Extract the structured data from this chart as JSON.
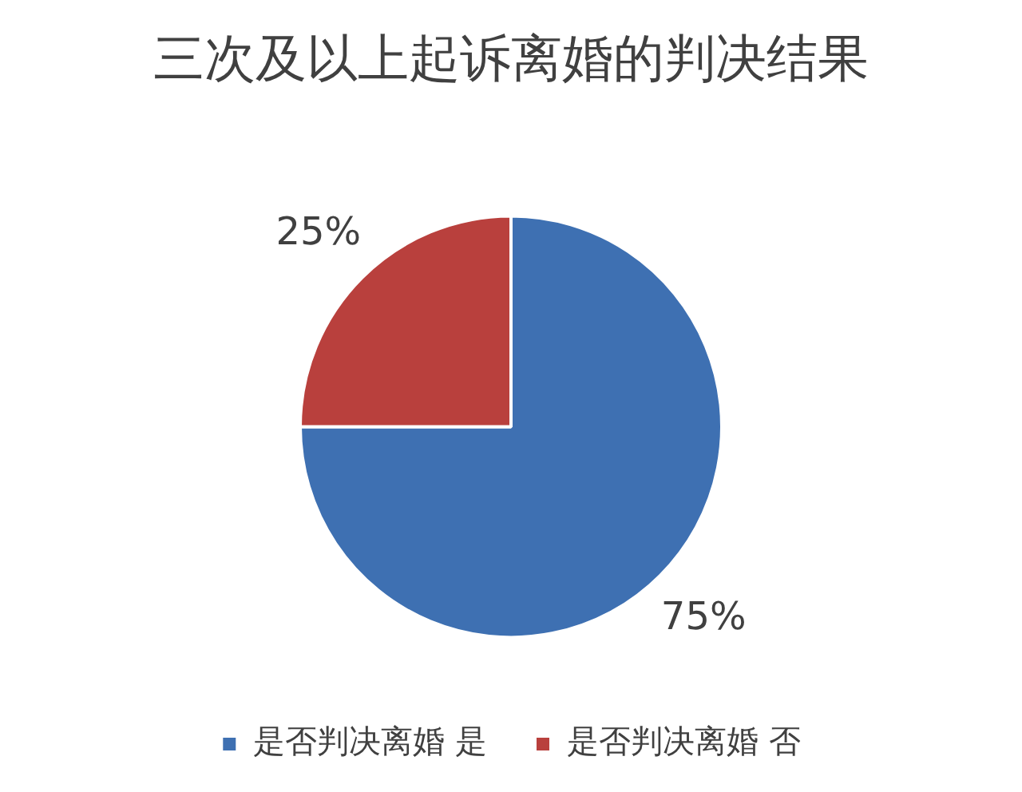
{
  "chart_data": {
    "type": "pie",
    "title": "三次及以上起诉离婚的判决结果",
    "categories": [
      "是否判决离婚 是",
      "是否判决离婚 否"
    ],
    "values": [
      75,
      25
    ],
    "colors": [
      "#3e70b2",
      "#b9403d"
    ],
    "value_labels": [
      "75%",
      "25%"
    ],
    "legend": "bottom"
  }
}
